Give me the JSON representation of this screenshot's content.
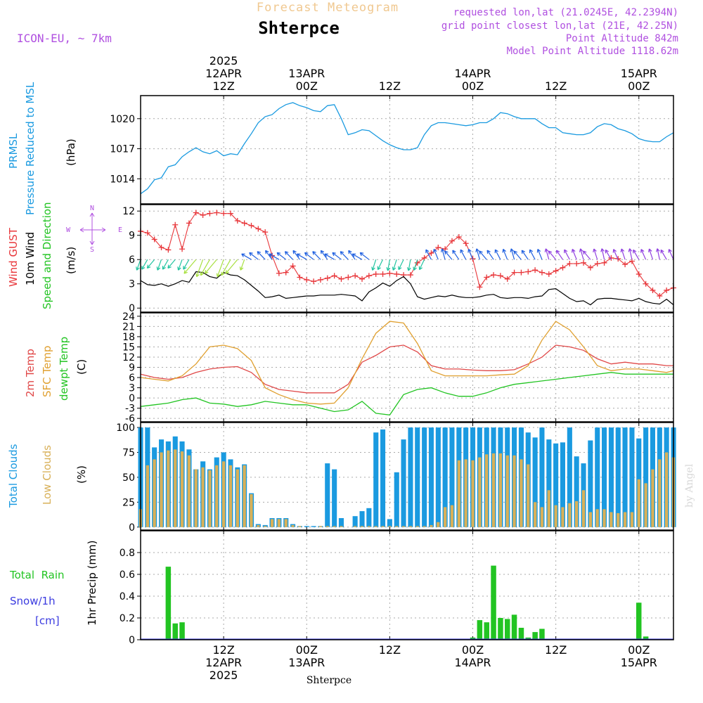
{
  "header": {
    "subtitle": "Forecast Meteogram",
    "location": "Shterpce",
    "model": "ICON-EU, ~ 7km",
    "requested": "requested lon,lat (21.0245E, 42.2394N)",
    "gridpoint": "grid point closest lon,lat (21E, 42.25N)",
    "point_alt": "Point Altitude 842m",
    "model_alt": "Model Point Altitude 1118.62m",
    "footer_location": "Shterpce",
    "credit": "by Angel"
  },
  "time_axis": {
    "top": [
      {
        "t": 12,
        "lines": [
          "2025",
          "12APR",
          "12Z"
        ]
      },
      {
        "t": 24,
        "lines": [
          "13APR",
          "00Z"
        ]
      },
      {
        "t": 36,
        "lines": [
          "12Z"
        ]
      },
      {
        "t": 48,
        "lines": [
          "14APR",
          "00Z"
        ]
      },
      {
        "t": 60,
        "lines": [
          "12Z"
        ]
      },
      {
        "t": 72,
        "lines": [
          "15APR",
          "00Z"
        ]
      }
    ],
    "bottom": [
      {
        "t": 12,
        "lines": [
          "12Z",
          "12APR",
          "2025"
        ]
      },
      {
        "t": 24,
        "lines": [
          "00Z",
          "13APR"
        ]
      },
      {
        "t": 36,
        "lines": [
          "12Z"
        ]
      },
      {
        "t": 48,
        "lines": [
          "00Z",
          "14APR"
        ]
      },
      {
        "t": 60,
        "lines": [
          "12Z"
        ]
      },
      {
        "t": 72,
        "lines": [
          "00Z",
          "15APR"
        ]
      }
    ]
  },
  "labels": {
    "pressure": {
      "title1": "PRMSL",
      "title2": "Pressure Reduced to MSL",
      "unit": "(hPa)"
    },
    "wind": {
      "gust": "Wind GUST",
      "wind10": "10m Wind",
      "dir": "Speed and Direction",
      "unit": "(m/s)",
      "compass_n": "N",
      "compass_s": "S",
      "compass_w": "W",
      "compass_e": "E"
    },
    "temp": {
      "t2m": "2m Temp",
      "sfc": "SFC Temp",
      "dew": "dewpt Temp",
      "unit": "(C)"
    },
    "cloud": {
      "total": "Total Clouds",
      "low": "Low Clouds",
      "unit": "(%)"
    },
    "precip": {
      "rain": "Total  Rain",
      "snow": "Snow/1h",
      "snow_unit": "[cm]",
      "ylabel": "1hr Precip (mm)"
    }
  },
  "colors": {
    "pressure": "#1a9ae0",
    "gust": "#e8363a",
    "wind": "#000000",
    "t2m": "#e04848",
    "sfc": "#e0a030",
    "dew": "#22c422",
    "total_clouds": "#1a9ae0",
    "low_clouds": "#d8b058",
    "rain": "#22c422",
    "snow": "#3b3be0",
    "label_purple": "#b050e0",
    "subtitle": "#f0c890"
  },
  "chart_data": [
    {
      "type": "line",
      "title": "PRMSL Pressure Reduced to MSL",
      "ylabel": "(hPa)",
      "ylim": [
        1011.5,
        1022.3
      ],
      "yticks": [
        1014,
        1017,
        1020
      ],
      "x_hours": [
        0,
        1,
        2,
        3,
        4,
        5,
        6,
        7,
        8,
        9,
        10,
        11,
        12,
        13,
        14,
        15,
        16,
        17,
        18,
        19,
        20,
        21,
        22,
        23,
        24,
        25,
        26,
        27,
        28,
        29,
        30,
        31,
        32,
        33,
        34,
        35,
        36,
        37,
        38,
        39,
        40,
        41,
        42,
        43,
        44,
        45,
        46,
        47,
        48,
        49,
        50,
        51,
        52,
        53,
        54,
        55,
        56,
        57,
        58,
        59,
        60,
        61,
        62,
        63,
        64,
        65,
        66,
        67,
        68,
        69,
        70,
        71,
        72,
        73,
        74,
        75,
        76,
        77
      ],
      "values": [
        1012.5,
        1013.0,
        1013.9,
        1014.1,
        1015.2,
        1015.4,
        1016.2,
        1016.7,
        1017.1,
        1016.7,
        1016.5,
        1016.8,
        1016.3,
        1016.5,
        1016.4,
        1017.5,
        1018.5,
        1019.6,
        1020.2,
        1020.4,
        1021.0,
        1021.4,
        1021.6,
        1021.3,
        1021.1,
        1020.8,
        1020.7,
        1021.3,
        1021.4,
        1020.0,
        1018.4,
        1018.6,
        1018.9,
        1018.8,
        1018.3,
        1017.8,
        1017.4,
        1017.1,
        1016.9,
        1016.9,
        1017.1,
        1018.4,
        1019.3,
        1019.6,
        1019.6,
        1019.5,
        1019.4,
        1019.3,
        1019.4,
        1019.6,
        1019.6,
        1020.0,
        1020.6,
        1020.5,
        1020.2,
        1020.0,
        1020.0,
        1020.0,
        1019.5,
        1019.1,
        1019.1,
        1018.6,
        1018.5,
        1018.4,
        1018.4,
        1018.6,
        1019.2,
        1019.5,
        1019.4,
        1019.0,
        1018.8,
        1018.5,
        1018.0,
        1017.8,
        1017.7,
        1017.7,
        1018.2,
        1018.6
      ],
      "series": [
        {
          "name": "PRMSL",
          "color": "#1a9ae0"
        }
      ]
    },
    {
      "type": "line",
      "title": "Wind GUST / 10m Wind Speed and Direction",
      "ylabel": "(m/s)",
      "ylim": [
        -0.5,
        12.8
      ],
      "yticks": [
        0,
        3,
        6,
        9,
        12
      ],
      "x_hours": [
        0,
        1,
        2,
        3,
        4,
        5,
        6,
        7,
        8,
        9,
        10,
        11,
        12,
        13,
        14,
        15,
        16,
        17,
        18,
        19,
        20,
        21,
        22,
        23,
        24,
        25,
        26,
        27,
        28,
        29,
        30,
        31,
        32,
        33,
        34,
        35,
        36,
        37,
        38,
        39,
        40,
        41,
        42,
        43,
        44,
        45,
        46,
        47,
        48,
        49,
        50,
        51,
        52,
        53,
        54,
        55,
        56,
        57,
        58,
        59,
        60,
        61,
        62,
        63,
        64,
        65,
        66,
        67,
        68,
        69,
        70,
        71,
        72,
        73,
        74,
        75,
        76,
        77
      ],
      "series": [
        {
          "name": "Wind GUST",
          "color": "#e8363a",
          "marker": "plus",
          "values": [
            9.5,
            9.3,
            8.5,
            7.5,
            7.2,
            10.3,
            7.3,
            10.5,
            11.8,
            11.5,
            11.7,
            11.8,
            11.7,
            11.7,
            10.8,
            10.5,
            10.2,
            9.8,
            9.4,
            6.5,
            4.3,
            4.4,
            5.2,
            3.8,
            3.5,
            3.3,
            3.5,
            3.7,
            4.0,
            3.6,
            3.8,
            4.0,
            3.6,
            4.0,
            4.2,
            4.2,
            4.3,
            4.2,
            4.1,
            4.1,
            5.6,
            6.2,
            6.8,
            7.5,
            7.3,
            8.3,
            8.8,
            8.0,
            6.1,
            2.6,
            3.8,
            4.1,
            4.0,
            3.6,
            4.4,
            4.4,
            4.5,
            4.7,
            4.4,
            4.2,
            4.6,
            5.0,
            5.5,
            5.5,
            5.6,
            5.0,
            5.5,
            5.6,
            6.2,
            6.1,
            5.4,
            5.8,
            4.2,
            3.0,
            2.2,
            1.5,
            2.2,
            2.5
          ]
        },
        {
          "name": "10m Wind",
          "color": "#000000",
          "values": [
            3.4,
            2.9,
            2.8,
            3.0,
            2.7,
            3.0,
            3.4,
            3.2,
            4.5,
            4.4,
            3.9,
            3.7,
            4.4,
            4.1,
            4.0,
            3.5,
            2.8,
            2.1,
            1.3,
            1.4,
            1.6,
            1.2,
            1.3,
            1.4,
            1.5,
            1.5,
            1.6,
            1.6,
            1.6,
            1.7,
            1.6,
            1.5,
            0.9,
            2.0,
            2.5,
            3.1,
            2.7,
            3.4,
            3.9,
            3.0,
            1.4,
            1.1,
            1.3,
            1.5,
            1.4,
            1.6,
            1.4,
            1.3,
            1.3,
            1.4,
            1.6,
            1.7,
            1.3,
            1.2,
            1.3,
            1.3,
            1.2,
            1.4,
            1.5,
            2.3,
            2.4,
            1.8,
            1.2,
            0.8,
            0.9,
            0.4,
            1.1,
            1.2,
            1.2,
            1.1,
            1.0,
            0.9,
            1.2,
            0.8,
            0.6,
            0.5,
            1.1,
            0.4
          ]
        }
      ],
      "wind_arrows": {
        "level": 6.0,
        "from": "mostly E/SE, turning SW to NE over 13-15 Apr"
      }
    },
    {
      "type": "line",
      "title": "2m Temp / SFC Temp / dewpt Temp",
      "ylabel": "(C)",
      "ylim": [
        -7,
        25
      ],
      "yticks": [
        -6,
        -3,
        0,
        3,
        6,
        9,
        12,
        15,
        18,
        21,
        24
      ],
      "x_hours": [
        0,
        2,
        4,
        6,
        8,
        10,
        12,
        14,
        16,
        18,
        20,
        22,
        24,
        26,
        28,
        30,
        32,
        34,
        36,
        38,
        40,
        42,
        44,
        46,
        48,
        50,
        52,
        54,
        56,
        58,
        60,
        62,
        64,
        66,
        68,
        70,
        72,
        74,
        76,
        77
      ],
      "series": [
        {
          "name": "2m Temp",
          "color": "#e04848",
          "values": [
            7.0,
            6.0,
            5.5,
            6.0,
            7.5,
            8.5,
            9.0,
            9.2,
            7.5,
            4.0,
            2.5,
            2.0,
            1.5,
            1.5,
            1.5,
            4.0,
            10.5,
            12.5,
            15.0,
            15.5,
            13.5,
            9.5,
            8.5,
            8.5,
            8.2,
            8.0,
            8.0,
            8.3,
            10.0,
            12.0,
            15.5,
            15.0,
            14.0,
            11.5,
            10.0,
            10.5,
            10.0,
            10.0,
            9.5,
            9.5
          ]
        },
        {
          "name": "SFC Temp",
          "color": "#e0a030",
          "values": [
            6.0,
            5.5,
            5.0,
            6.5,
            10.0,
            15.0,
            15.5,
            14.5,
            11.0,
            3.0,
            1.0,
            -0.5,
            -1.5,
            -1.8,
            -1.5,
            3.0,
            11.5,
            19.0,
            22.5,
            22.0,
            16.0,
            8.0,
            6.5,
            6.5,
            6.5,
            6.5,
            6.8,
            7.0,
            9.5,
            17.0,
            22.5,
            20.0,
            15.0,
            9.5,
            8.0,
            8.5,
            8.5,
            8.0,
            7.5,
            8.0
          ]
        },
        {
          "name": "dewpt Temp",
          "color": "#22c422",
          "values": [
            -2.5,
            -2.0,
            -1.5,
            -0.5,
            0.0,
            -1.5,
            -1.8,
            -2.5,
            -2.0,
            -1.0,
            -1.5,
            -2.0,
            -2.0,
            -3.0,
            -4.0,
            -3.5,
            -1.0,
            -4.5,
            -5.0,
            1.0,
            2.5,
            3.0,
            1.5,
            0.5,
            0.5,
            1.5,
            3.0,
            4.0,
            4.5,
            5.0,
            5.5,
            6.0,
            6.5,
            7.0,
            7.5,
            7.0,
            7.0,
            7.0,
            7.0,
            7.0
          ]
        }
      ]
    },
    {
      "type": "bar",
      "title": "Total Clouds / Low Clouds",
      "ylabel": "(%)",
      "ylim": [
        -3,
        105
      ],
      "yticks": [
        0,
        25,
        50,
        75,
        100
      ],
      "x_hours": [
        0,
        1,
        2,
        3,
        4,
        5,
        6,
        7,
        8,
        9,
        10,
        11,
        12,
        13,
        14,
        15,
        16,
        17,
        18,
        19,
        20,
        21,
        22,
        23,
        24,
        25,
        26,
        27,
        28,
        29,
        30,
        31,
        32,
        33,
        34,
        35,
        36,
        37,
        38,
        39,
        40,
        41,
        42,
        43,
        44,
        45,
        46,
        47,
        48,
        49,
        50,
        51,
        52,
        53,
        54,
        55,
        56,
        57,
        58,
        59,
        60,
        61,
        62,
        63,
        64,
        65,
        66,
        67,
        68,
        69,
        70,
        71,
        72,
        73,
        74,
        75,
        76,
        77
      ],
      "series": [
        {
          "name": "Total Clouds",
          "color": "#1a9ae0",
          "values": [
            100,
            100,
            80,
            88,
            86,
            91,
            86,
            78,
            58,
            66,
            58,
            70,
            75,
            68,
            60,
            63,
            34,
            3,
            2,
            9,
            9,
            9,
            3,
            1,
            1,
            1,
            1,
            64,
            58,
            9,
            0,
            11,
            16,
            19,
            95,
            98,
            8,
            55,
            88,
            100,
            100,
            100,
            100,
            100,
            100,
            100,
            100,
            100,
            100,
            100,
            100,
            100,
            100,
            100,
            100,
            100,
            95,
            90,
            100,
            88,
            84,
            85,
            100,
            71,
            64,
            87,
            100,
            100,
            100,
            100,
            100,
            100,
            89,
            100,
            100,
            100,
            100,
            100
          ]
        },
        {
          "name": "Low Clouds",
          "color": "#d8b058",
          "values": [
            18,
            62,
            68,
            75,
            77,
            78,
            76,
            72,
            58,
            60,
            57,
            62,
            66,
            62,
            58,
            62,
            33,
            2,
            1,
            8,
            8,
            8,
            2,
            1,
            0,
            0,
            1,
            1,
            1,
            1,
            0,
            1,
            1,
            1,
            1,
            1,
            1,
            1,
            1,
            1,
            1,
            1,
            2,
            5,
            20,
            22,
            67,
            68,
            67,
            70,
            73,
            74,
            74,
            72,
            72,
            68,
            63,
            25,
            20,
            37,
            22,
            20,
            24,
            26,
            37,
            15,
            18,
            18,
            15,
            14,
            15,
            15,
            48,
            44,
            58,
            68,
            75,
            70
          ]
        }
      ]
    },
    {
      "type": "bar",
      "title": "1hr Precip (mm)",
      "ylabel": "1hr Precip (mm)",
      "ylim": [
        0,
        1.0
      ],
      "yticks": [
        0,
        0.2,
        0.4,
        0.6,
        0.8
      ],
      "ytick_labels": [
        "0",
        "0.2",
        "0.4",
        "0.6",
        "0.8"
      ],
      "x_hours": [
        4,
        5,
        6,
        7,
        8,
        47,
        48,
        49,
        50,
        51,
        52,
        53,
        54,
        55,
        56,
        57,
        58,
        71,
        72,
        73,
        74
      ],
      "series": [
        {
          "name": "Total Rain",
          "color": "#22c422",
          "values": [
            0.67,
            0.15,
            0.16,
            0.01,
            0.01,
            0.01,
            0.02,
            0.18,
            0.16,
            0.68,
            0.2,
            0.19,
            0.23,
            0.11,
            0.02,
            0.07,
            0.1,
            0.01,
            0.34,
            0.03,
            0.01
          ]
        }
      ]
    }
  ]
}
